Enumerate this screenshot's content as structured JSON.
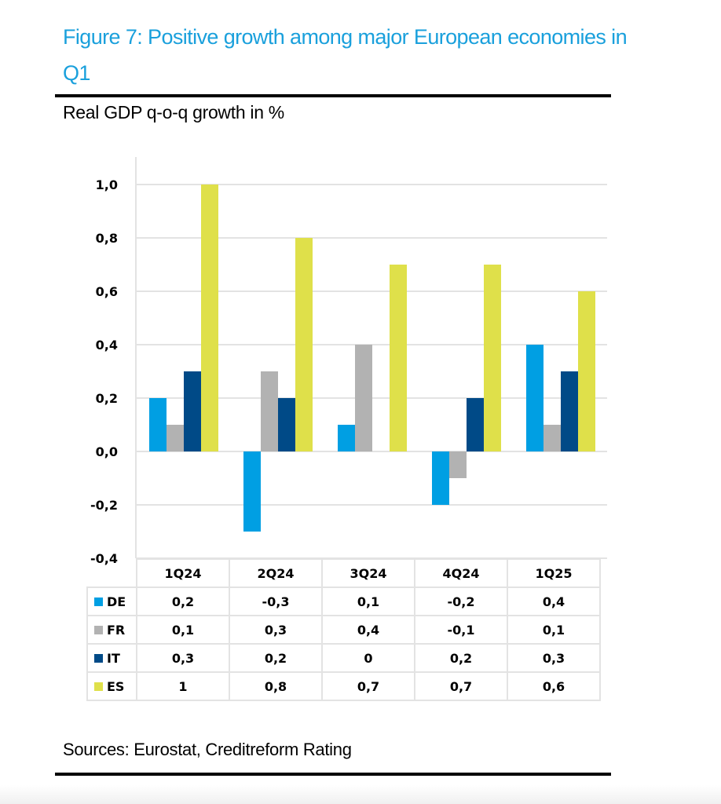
{
  "figure": {
    "title": "Figure 7: Positive growth among major European economies in Q1",
    "subtitle": "Real GDP q-o-q growth in %",
    "source": "Sources: Eurostat, Creditreform Rating"
  },
  "colors": {
    "DE": "#009fe3",
    "FR": "#b2b2b2",
    "IT": "#004a87",
    "ES": "#dfe04a",
    "grid": "#e3e3e3",
    "title": "#1aa0dc"
  },
  "chart_data": {
    "type": "bar",
    "title": "Figure 7: Positive growth among major European economies in Q1",
    "subtitle": "Real GDP q-o-q growth in %",
    "xlabel": "",
    "ylabel": "Real GDP q-o-q growth in %",
    "categories": [
      "1Q24",
      "2Q24",
      "3Q24",
      "4Q24",
      "1Q25"
    ],
    "series": [
      {
        "name": "DE",
        "values": [
          0.2,
          -0.3,
          0.1,
          -0.2,
          0.4
        ],
        "labels": [
          "0,2",
          "-0,3",
          "0,1",
          "-0,2",
          "0,4"
        ]
      },
      {
        "name": "FR",
        "values": [
          0.1,
          0.3,
          0.4,
          -0.1,
          0.1
        ],
        "labels": [
          "0,1",
          "0,3",
          "0,4",
          "-0,1",
          "0,1"
        ]
      },
      {
        "name": "IT",
        "values": [
          0.3,
          0.2,
          0,
          0.2,
          0.3
        ],
        "labels": [
          "0,3",
          "0,2",
          "0",
          "0,2",
          "0,3"
        ]
      },
      {
        "name": "ES",
        "values": [
          1,
          0.8,
          0.7,
          0.7,
          0.6
        ],
        "labels": [
          "1",
          "0,8",
          "0,7",
          "0,7",
          "0,6"
        ]
      }
    ],
    "ylim": [
      -0.4,
      1.0
    ],
    "yticks": [
      1.0,
      0.8,
      0.6,
      0.4,
      0.2,
      0.0,
      -0.2,
      -0.4
    ],
    "ytick_labels": [
      "1,0",
      "0,8",
      "0,6",
      "0,4",
      "0,2",
      "0,0",
      "-0,2",
      "-0,4"
    ],
    "grid": true,
    "legend": "data-table-below"
  }
}
